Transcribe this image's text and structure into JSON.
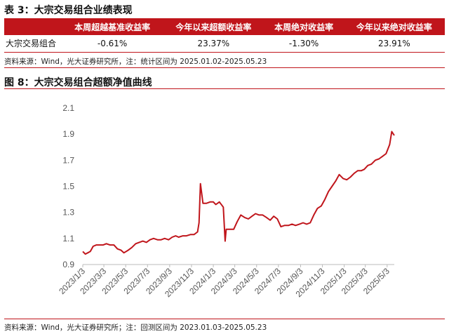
{
  "table3": {
    "title": "表 3：大宗交易组合业绩表现",
    "headers": [
      "",
      "本周超越基准收益率",
      "今年以来超额收益率",
      "本周绝对收益率",
      "今年以来绝对收益率"
    ],
    "rows": [
      [
        "大宗交易组合",
        "-0.61%",
        "23.37%",
        "-1.30%",
        "23.91%"
      ]
    ],
    "source": "资料来源：Wind，光大证券研究所，注：统计区间为 2025.01.02-2025.05.23"
  },
  "figure8": {
    "title": "图 8：大宗交易组合超额净值曲线",
    "source": "资料来源：Wind，光大证券研究所；注：回测区间为 2023.01.03-2025.05.23"
  },
  "colors": {
    "accent": "#c0151b",
    "line": "#c0151b"
  },
  "chart_data": {
    "type": "line",
    "title": "",
    "xlabel": "",
    "ylabel": "",
    "ylim": [
      0.9,
      2.1
    ],
    "yticks": [
      0.9,
      1.1,
      1.3,
      1.5,
      1.7,
      1.9,
      2.1
    ],
    "ytick_labels": [
      "0.9",
      "1.1",
      "1.3",
      "1.5",
      "1.7",
      "1.9",
      "2.1"
    ],
    "xticks": [
      "2023/1/3",
      "2023/3/3",
      "2023/5/3",
      "2023/7/3",
      "2023/9/3",
      "2023/11/3",
      "2024/1/3",
      "2024/3/3",
      "2024/5/3",
      "2024/7/3",
      "2024/9/3",
      "2024/11/3",
      "2025/1/3",
      "2025/3/3",
      "2025/5/3"
    ],
    "grid": false,
    "legend": "none",
    "series": [
      {
        "x": [
          "2023/1/3",
          "2023/1/10",
          "2023/1/17",
          "2023/1/24",
          "2023/2/1",
          "2023/2/10",
          "2023/2/20",
          "2023/3/1",
          "2023/3/10",
          "2023/3/20",
          "2023/3/31",
          "2023/4/10",
          "2023/4/20",
          "2023/4/28",
          "2023/5/10",
          "2023/5/20",
          "2023/5/31",
          "2023/6/10",
          "2023/6/20",
          "2023/6/30",
          "2023/7/10",
          "2023/7/20",
          "2023/7/31",
          "2023/8/10",
          "2023/8/20",
          "2023/8/31",
          "2023/9/10",
          "2023/9/20",
          "2023/9/28",
          "2023/10/10",
          "2023/10/20",
          "2023/10/31",
          "2023/11/10",
          "2023/11/20",
          "2023/11/24",
          "2023/11/28",
          "2023/12/5",
          "2023/12/15",
          "2023/12/25",
          "2024/1/3",
          "2024/1/10",
          "2024/1/20",
          "2024/1/31",
          "2024/2/5",
          "2024/2/8",
          "2024/2/20",
          "2024/2/29",
          "2024/3/10",
          "2024/3/20",
          "2024/3/31",
          "2024/4/10",
          "2024/4/20",
          "2024/4/30",
          "2024/5/10",
          "2024/5/20",
          "2024/5/31",
          "2024/6/10",
          "2024/6/20",
          "2024/6/30",
          "2024/7/10",
          "2024/7/20",
          "2024/7/31",
          "2024/8/10",
          "2024/8/20",
          "2024/8/31",
          "2024/9/10",
          "2024/9/20",
          "2024/9/30",
          "2024/10/10",
          "2024/10/20",
          "2024/10/31",
          "2024/11/10",
          "2024/11/20",
          "2024/11/30",
          "2024/12/10",
          "2024/12/20",
          "2024/12/31",
          "2025/1/10",
          "2025/1/20",
          "2025/1/31",
          "2025/2/10",
          "2025/2/20",
          "2025/2/28",
          "2025/3/10",
          "2025/3/20",
          "2025/3/31",
          "2025/4/10",
          "2025/4/20",
          "2025/4/30",
          "2025/5/10",
          "2025/5/16",
          "2025/5/23"
        ],
        "values": [
          1.0,
          0.98,
          0.99,
          1.0,
          1.04,
          1.05,
          1.05,
          1.05,
          1.06,
          1.05,
          1.05,
          1.02,
          1.01,
          0.99,
          1.01,
          1.03,
          1.06,
          1.07,
          1.08,
          1.07,
          1.09,
          1.1,
          1.09,
          1.09,
          1.1,
          1.09,
          1.11,
          1.12,
          1.11,
          1.12,
          1.12,
          1.13,
          1.13,
          1.15,
          1.22,
          1.52,
          1.37,
          1.37,
          1.38,
          1.38,
          1.36,
          1.38,
          1.34,
          1.08,
          1.17,
          1.17,
          1.17,
          1.23,
          1.28,
          1.26,
          1.25,
          1.27,
          1.29,
          1.28,
          1.28,
          1.26,
          1.24,
          1.27,
          1.25,
          1.19,
          1.2,
          1.2,
          1.21,
          1.2,
          1.21,
          1.22,
          1.21,
          1.22,
          1.28,
          1.33,
          1.35,
          1.4,
          1.46,
          1.5,
          1.54,
          1.59,
          1.56,
          1.55,
          1.57,
          1.6,
          1.62,
          1.62,
          1.63,
          1.66,
          1.67,
          1.7,
          1.71,
          1.73,
          1.75,
          1.82,
          1.92,
          1.89
        ]
      }
    ]
  }
}
